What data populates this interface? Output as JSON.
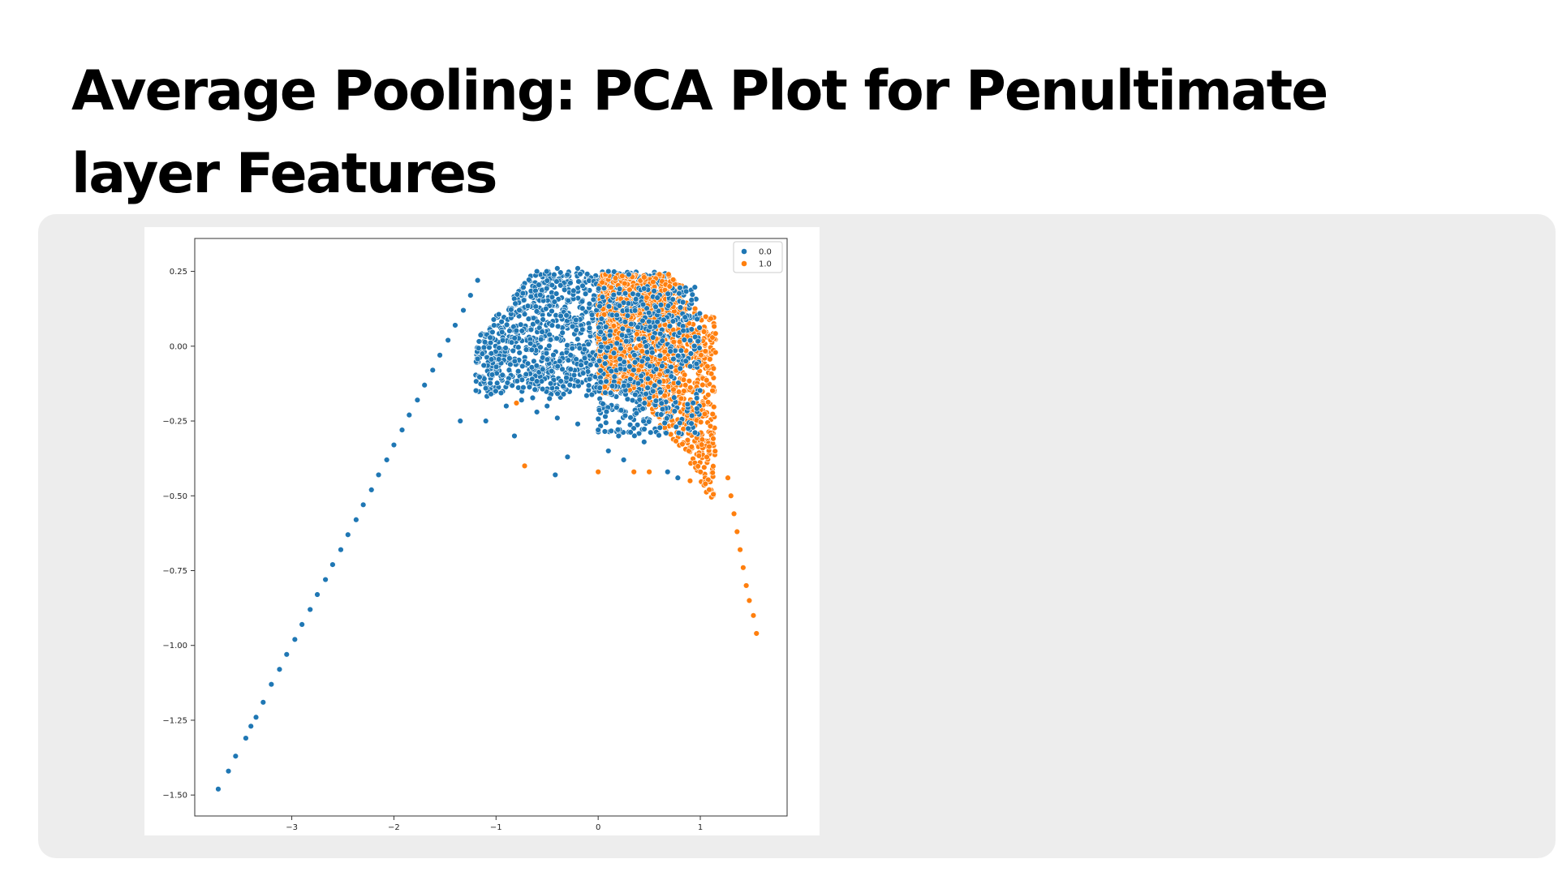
{
  "slide": {
    "title": "Average Pooling: PCA Plot for Penultimate layer Features"
  },
  "chart_data": {
    "type": "scatter",
    "title": "",
    "xlabel": "",
    "ylabel": "",
    "xlim": [
      -3.95,
      1.85
    ],
    "ylim": [
      -1.57,
      0.36
    ],
    "x_ticks": [
      -3,
      -2,
      -1,
      0,
      1
    ],
    "x_tick_labels": [
      "−3",
      "−2",
      "−1",
      "0",
      "1"
    ],
    "y_ticks": [
      0.25,
      0.0,
      -0.25,
      -0.5,
      -0.75,
      -1.0,
      -1.25,
      -1.5
    ],
    "y_tick_labels": [
      "0.25",
      "0.00",
      "−0.25",
      "−0.50",
      "−0.75",
      "−1.00",
      "−1.25",
      "−1.50"
    ],
    "grid": false,
    "legend_position": "top-right",
    "series": [
      {
        "name": "0.0",
        "color": "#1f77b4",
        "points": [
          [
            -3.72,
            -1.48
          ],
          [
            -3.62,
            -1.42
          ],
          [
            -3.55,
            -1.37
          ],
          [
            -3.45,
            -1.31
          ],
          [
            -3.4,
            -1.27
          ],
          [
            -3.35,
            -1.24
          ],
          [
            -3.28,
            -1.19
          ],
          [
            -3.2,
            -1.13
          ],
          [
            -3.12,
            -1.08
          ],
          [
            -3.05,
            -1.03
          ],
          [
            -2.97,
            -0.98
          ],
          [
            -2.9,
            -0.93
          ],
          [
            -2.82,
            -0.88
          ],
          [
            -2.75,
            -0.83
          ],
          [
            -2.67,
            -0.78
          ],
          [
            -2.6,
            -0.73
          ],
          [
            -2.52,
            -0.68
          ],
          [
            -2.45,
            -0.63
          ],
          [
            -2.37,
            -0.58
          ],
          [
            -2.3,
            -0.53
          ],
          [
            -2.22,
            -0.48
          ],
          [
            -2.15,
            -0.43
          ],
          [
            -2.07,
            -0.38
          ],
          [
            -2.0,
            -0.33
          ],
          [
            -1.92,
            -0.28
          ],
          [
            -1.85,
            -0.23
          ],
          [
            -1.77,
            -0.18
          ],
          [
            -1.7,
            -0.13
          ],
          [
            -1.62,
            -0.08
          ],
          [
            -1.55,
            -0.03
          ],
          [
            -1.47,
            0.02
          ],
          [
            -1.4,
            0.07
          ],
          [
            -1.32,
            0.12
          ],
          [
            -1.25,
            0.17
          ],
          [
            -1.18,
            0.22
          ],
          [
            -1.35,
            -0.25
          ],
          [
            -1.1,
            -0.25
          ],
          [
            -0.82,
            -0.3
          ],
          [
            -0.72,
            -0.4
          ],
          [
            -0.42,
            -0.43
          ],
          [
            -0.3,
            -0.37
          ],
          [
            0.1,
            -0.35
          ],
          [
            0.25,
            -0.38
          ],
          [
            0.78,
            -0.44
          ],
          [
            0.68,
            -0.42
          ],
          [
            -0.9,
            -0.2
          ],
          [
            -0.6,
            -0.22
          ],
          [
            -0.4,
            -0.24
          ],
          [
            -0.2,
            -0.26
          ],
          [
            0.0,
            -0.28
          ],
          [
            0.2,
            -0.3
          ],
          [
            0.45,
            -0.32
          ],
          [
            -1.05,
            -0.16
          ],
          [
            -0.75,
            -0.18
          ],
          [
            -0.5,
            -0.2
          ],
          [
            -0.6,
            0.25
          ],
          [
            -0.2,
            0.26
          ],
          [
            0.1,
            0.25
          ],
          [
            0.3,
            0.24
          ],
          [
            -0.4,
            0.26
          ]
        ]
      },
      {
        "name": "1.0",
        "color": "#ff7f0e",
        "points": [
          [
            1.55,
            -0.96
          ],
          [
            1.52,
            -0.9
          ],
          [
            1.48,
            -0.85
          ],
          [
            1.45,
            -0.8
          ],
          [
            1.42,
            -0.74
          ],
          [
            1.39,
            -0.68
          ],
          [
            1.36,
            -0.62
          ],
          [
            1.33,
            -0.56
          ],
          [
            1.3,
            -0.5
          ],
          [
            1.27,
            -0.44
          ],
          [
            -0.72,
            -0.4
          ],
          [
            0.0,
            -0.42
          ],
          [
            0.35,
            -0.42
          ],
          [
            0.5,
            -0.42
          ],
          [
            1.05,
            -0.46
          ],
          [
            0.9,
            -0.45
          ],
          [
            -0.8,
            -0.19
          ],
          [
            0.6,
            0.24
          ],
          [
            0.45,
            0.23
          ],
          [
            0.7,
            0.2
          ]
        ]
      }
    ]
  }
}
